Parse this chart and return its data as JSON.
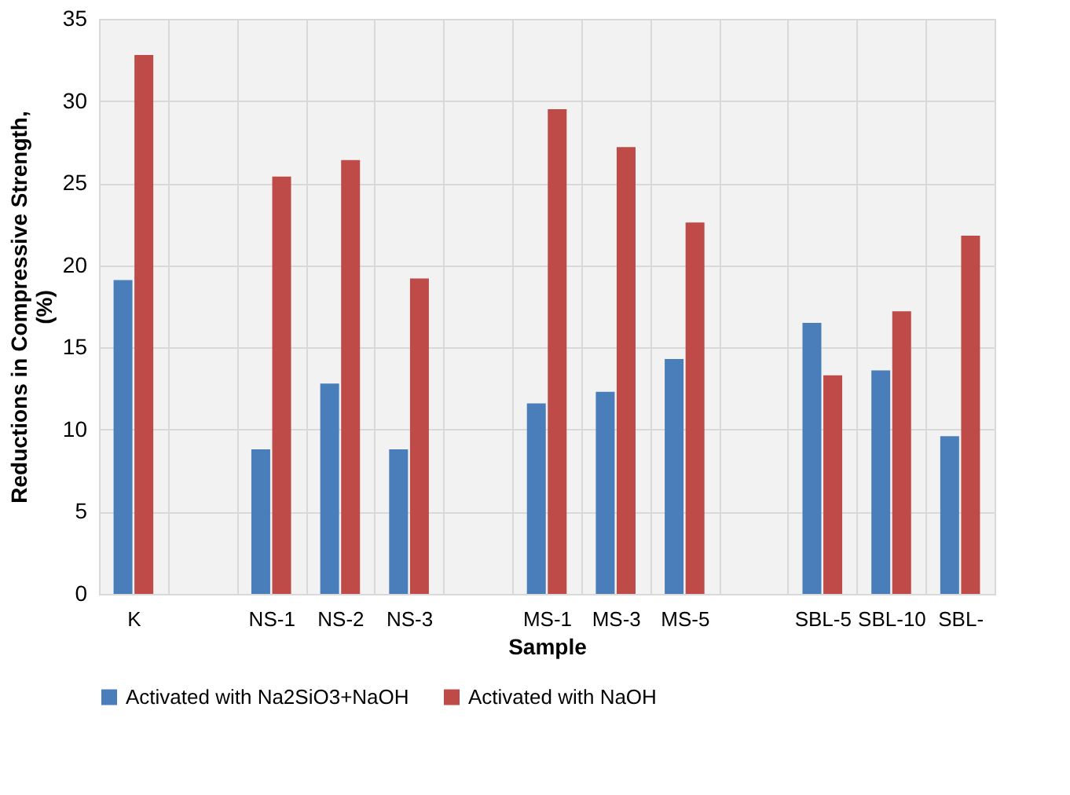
{
  "chart_data": {
    "type": "bar",
    "xlabel": "Sample",
    "ylabel": "Reductions in Compressive Strength, (%)",
    "categories": [
      "K",
      null,
      "NS-1",
      "NS-2",
      "NS-3",
      null,
      "MS-1",
      "MS-3",
      "MS-5",
      null,
      "SBL-5",
      "SBL-10",
      "SBL-"
    ],
    "series": [
      {
        "name": "Activated with Na2SiO3+NaOH",
        "color": "#4a7ebb",
        "values": [
          19.1,
          null,
          8.8,
          12.8,
          8.8,
          null,
          11.6,
          12.3,
          14.3,
          null,
          16.5,
          13.6,
          9.6
        ]
      },
      {
        "name": "Activated with NaOH",
        "color": "#be4b48",
        "values": [
          32.8,
          null,
          25.4,
          26.4,
          19.2,
          null,
          29.5,
          27.2,
          22.6,
          null,
          13.3,
          17.2,
          21.8
        ]
      }
    ],
    "ylim": [
      0,
      35
    ],
    "yticks": [
      0,
      5,
      10,
      15,
      20,
      25,
      30,
      35
    ],
    "grid": true,
    "legend": "bottom"
  }
}
